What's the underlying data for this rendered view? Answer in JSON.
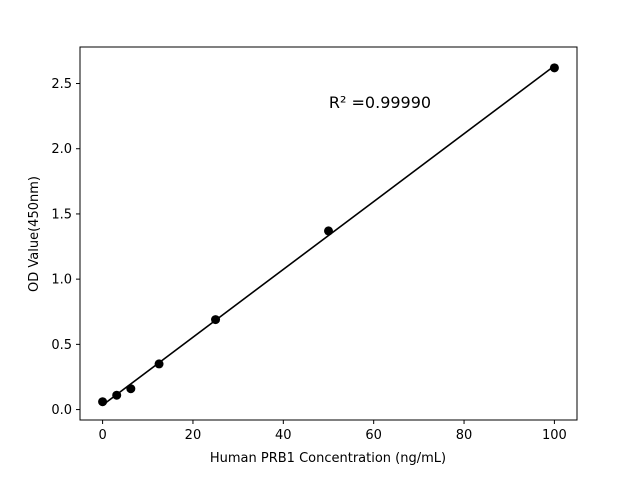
{
  "chart_data": {
    "type": "scatter",
    "title": "",
    "xlabel": "Human PRB1 Concentration (ng/mL)",
    "ylabel": "OD Value(450nm)",
    "annotation": "R² =0.99990",
    "x": [
      0,
      3.125,
      6.25,
      12.5,
      25,
      50,
      100
    ],
    "y": [
      0.06,
      0.11,
      0.16,
      0.35,
      0.69,
      1.37,
      2.62
    ],
    "xlim": [
      -5,
      105
    ],
    "ylim": [
      -0.08,
      2.78
    ],
    "xticks": {
      "values": [
        0,
        20,
        40,
        60,
        80,
        100
      ],
      "labels": [
        "0",
        "20",
        "40",
        "60",
        "80",
        "100"
      ]
    },
    "yticks": {
      "values": [
        0.0,
        0.5,
        1.0,
        1.5,
        2.0,
        2.5
      ],
      "labels": [
        "0.0",
        "0.5",
        "1.0",
        "1.5",
        "2.0",
        "2.5"
      ]
    },
    "fit": "linear",
    "grid": false,
    "legend_position": "none",
    "marker_color": "#000000",
    "line_color": "#000000",
    "axis_color": "#000000",
    "background_color": "#ffffff"
  }
}
